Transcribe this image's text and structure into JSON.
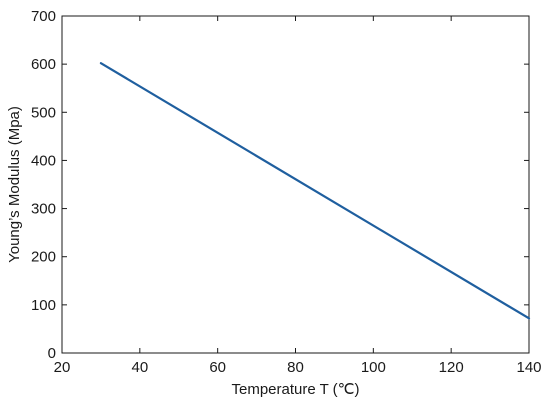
{
  "chart_data": {
    "type": "line",
    "title": "",
    "xlabel": "Temperature T (℃)",
    "ylabel": "Young’s Modulus (Mpa)",
    "xlim": [
      20,
      140
    ],
    "ylim": [
      0,
      700
    ],
    "x_ticks": [
      20,
      40,
      60,
      80,
      100,
      120,
      140
    ],
    "y_ticks": [
      0,
      100,
      200,
      300,
      400,
      500,
      600,
      700
    ],
    "grid": false,
    "series": [
      {
        "color": "#1f5f9f",
        "x": [
          30,
          140
        ],
        "y": [
          602,
          72
        ]
      }
    ]
  }
}
